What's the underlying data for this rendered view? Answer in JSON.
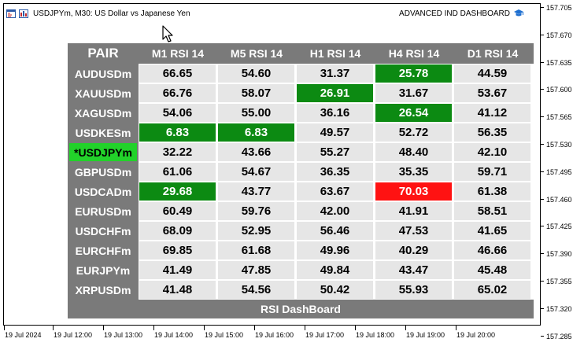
{
  "window": {
    "title": "USDJPYm, M30:  US Dollar vs Japanese Yen",
    "expert_name": "ADVANCED IND DASHBOARD",
    "icons": [
      "chart-window-icon",
      "chart-type-icon",
      "graduation-cap-icon",
      "mouse-cursor-icon"
    ]
  },
  "price_scale": [
    "157.705",
    "157.670",
    "157.635",
    "157.600",
    "157.565",
    "157.530",
    "157.495",
    "157.460",
    "157.425",
    "157.390",
    "157.355",
    "157.320",
    "157.285"
  ],
  "time_scale": [
    "19 Jul 2024",
    "19 Jul 12:00",
    "19 Jul 13:00",
    "19 Jul 14:00",
    "19 Jul 15:00",
    "19 Jul 16:00",
    "19 Jul 17:00",
    "19 Jul 18:00",
    "19 Jul 19:00",
    "19 Jul 20:00"
  ],
  "dashboard": {
    "header_pair": "PAIR",
    "timeframes": [
      "M1 RSI 14",
      "M5 RSI 14",
      "H1 RSI 14",
      "H4 RSI 14",
      "D1 RSI 14"
    ],
    "footer": "RSI DashBoard",
    "colors": {
      "header_bg": "#7a7a7a",
      "cell_bg": "#e6e6e6",
      "oversold": "#0c8a12",
      "overbought": "#ff1212",
      "current_pair": "#22d22a"
    },
    "rows": [
      {
        "pair": "AUDUSDm",
        "values": [
          "66.65",
          "54.60",
          "31.37",
          "25.78",
          "44.59"
        ],
        "states": [
          "",
          "",
          "",
          "oversold",
          ""
        ]
      },
      {
        "pair": "XAUUSDm",
        "values": [
          "66.76",
          "58.07",
          "26.91",
          "31.67",
          "53.67"
        ],
        "states": [
          "",
          "",
          "oversold",
          "",
          ""
        ]
      },
      {
        "pair": "XAGUSDm",
        "values": [
          "54.06",
          "55.00",
          "36.16",
          "26.54",
          "41.12"
        ],
        "states": [
          "",
          "",
          "",
          "oversold",
          ""
        ]
      },
      {
        "pair": "USDKESm",
        "values": [
          "6.83",
          "6.83",
          "49.57",
          "52.72",
          "56.35"
        ],
        "states": [
          "oversold",
          "oversold",
          "",
          "",
          ""
        ]
      },
      {
        "pair": "*USDJPYm",
        "current": true,
        "values": [
          "32.22",
          "43.66",
          "55.27",
          "48.40",
          "42.10"
        ],
        "states": [
          "",
          "",
          "",
          "",
          ""
        ]
      },
      {
        "pair": "GBPUSDm",
        "values": [
          "61.06",
          "54.67",
          "36.35",
          "35.35",
          "59.71"
        ],
        "states": [
          "",
          "",
          "",
          "",
          ""
        ]
      },
      {
        "pair": "USDCADm",
        "values": [
          "29.68",
          "43.77",
          "63.67",
          "70.03",
          "61.38"
        ],
        "states": [
          "oversold",
          "",
          "",
          "overbought",
          ""
        ]
      },
      {
        "pair": "EURUSDm",
        "values": [
          "60.49",
          "59.76",
          "42.00",
          "41.91",
          "58.51"
        ],
        "states": [
          "",
          "",
          "",
          "",
          ""
        ]
      },
      {
        "pair": "USDCHFm",
        "values": [
          "68.09",
          "52.95",
          "56.46",
          "47.53",
          "41.65"
        ],
        "states": [
          "",
          "",
          "",
          "",
          ""
        ]
      },
      {
        "pair": "EURCHFm",
        "values": [
          "69.85",
          "61.68",
          "49.96",
          "40.29",
          "46.66"
        ],
        "states": [
          "",
          "",
          "",
          "",
          ""
        ]
      },
      {
        "pair": "EURJPYm",
        "values": [
          "41.49",
          "47.85",
          "49.84",
          "43.47",
          "45.48"
        ],
        "states": [
          "",
          "",
          "",
          "",
          ""
        ]
      },
      {
        "pair": "XRPUSDm",
        "values": [
          "41.48",
          "54.56",
          "50.42",
          "55.93",
          "65.02"
        ],
        "states": [
          "",
          "",
          "",
          "",
          ""
        ]
      }
    ]
  }
}
